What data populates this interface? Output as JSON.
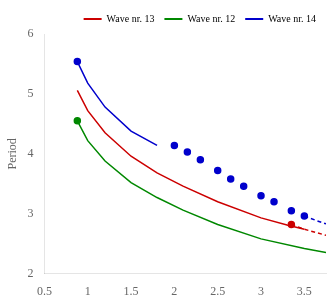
{
  "chart_data": {
    "type": "line",
    "title": "",
    "ylabel": "Period",
    "xlim": [
      0.5,
      3.75
    ],
    "ylim": [
      2.0,
      6.0
    ],
    "xticks": [
      0.5,
      1,
      1.5,
      2,
      2.5,
      3,
      3.5
    ],
    "yticks": [
      2,
      3,
      4,
      5,
      6
    ],
    "grid": false,
    "legend": "upper right",
    "series": [
      {
        "name": "Wave nr. 13",
        "color": "#cc0000",
        "line_style": "solid",
        "marker": "none",
        "x": [
          0.88,
          1.0,
          1.2,
          1.5,
          1.8,
          2.1,
          2.5,
          3.0,
          3.3,
          3.5
        ],
        "values": [
          5.06,
          4.72,
          4.35,
          3.96,
          3.68,
          3.46,
          3.2,
          2.93,
          2.81,
          2.74
        ]
      },
      {
        "name": "Wave nr. 13",
        "color": "#cc0000",
        "line_style": "none",
        "marker": "circle",
        "x": [
          3.35
        ],
        "values": [
          2.82
        ]
      },
      {
        "name": "Wave nr. 13",
        "color": "#cc0000",
        "line_style": "dashed",
        "marker": "none",
        "x": [
          3.35,
          3.5,
          3.65,
          3.75
        ],
        "values": [
          2.82,
          2.74,
          2.68,
          2.64
        ]
      },
      {
        "name": "Wave nr. 12",
        "color": "#008800",
        "line_style": "solid",
        "marker": "none",
        "x": [
          0.88,
          1.0,
          1.2,
          1.5,
          1.8,
          2.1,
          2.5,
          3.0,
          3.5,
          3.75
        ],
        "values": [
          4.55,
          4.22,
          3.88,
          3.52,
          3.27,
          3.06,
          2.82,
          2.58,
          2.42,
          2.35
        ]
      },
      {
        "name": "Wave nr. 12",
        "color": "#008800",
        "line_style": "none",
        "marker": "circle",
        "x": [
          0.88
        ],
        "values": [
          4.55
        ]
      },
      {
        "name": "Wave nr. 14",
        "color": "#0000cc",
        "line_style": "solid",
        "marker": "none",
        "x": [
          0.88,
          1.0,
          1.2,
          1.5,
          1.8
        ],
        "values": [
          5.54,
          5.18,
          4.78,
          4.38,
          4.14
        ]
      },
      {
        "name": "Wave nr. 14",
        "color": "#0000cc",
        "line_style": "none",
        "marker": "circle",
        "x": [
          0.88,
          2.0,
          2.15,
          2.3,
          2.5,
          2.65,
          2.8,
          3.0,
          3.15,
          3.35,
          3.5
        ],
        "values": [
          5.54,
          4.14,
          4.03,
          3.9,
          3.72,
          3.58,
          3.46,
          3.3,
          3.2,
          3.05,
          2.96
        ]
      },
      {
        "name": "Wave nr. 14",
        "color": "#0000cc",
        "line_style": "dashed",
        "marker": "none",
        "x": [
          3.5,
          3.65,
          3.75
        ],
        "values": [
          2.96,
          2.88,
          2.83
        ]
      }
    ]
  }
}
